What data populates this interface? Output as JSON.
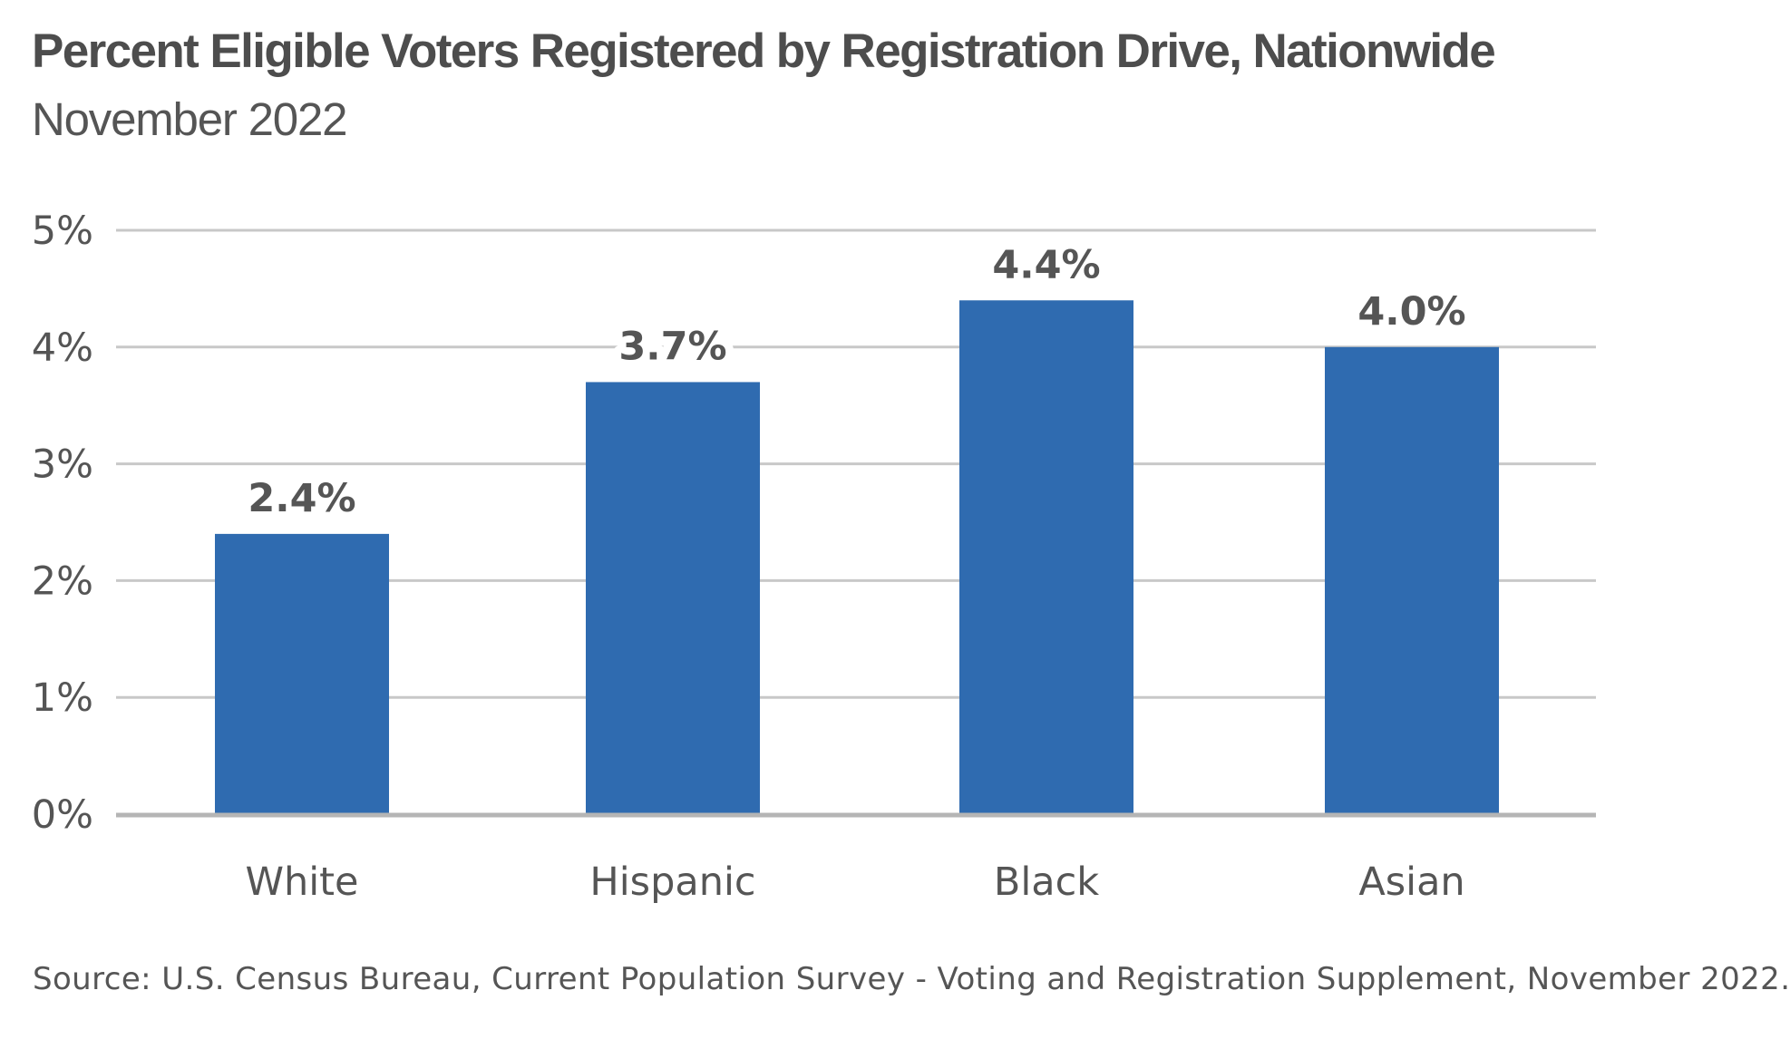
{
  "chart_data": {
    "type": "bar",
    "title": "Percent Eligible Voters Registered by Registration Drive, Nationwide",
    "subtitle": "November 2022",
    "categories": [
      "White",
      "Hispanic",
      "Black",
      "Asian"
    ],
    "values": [
      2.4,
      3.7,
      4.4,
      4.0
    ],
    "data_labels": [
      "2.4%",
      "3.7%",
      "4.4%",
      "4.0%"
    ],
    "xlabel": "",
    "ylabel": "",
    "ylim": [
      0,
      5
    ],
    "yticks": [
      0,
      1,
      2,
      3,
      4,
      5
    ],
    "ytick_labels": [
      "0%",
      "1%",
      "2%",
      "3%",
      "4%",
      "5%"
    ],
    "grid": true,
    "legend": "none",
    "bar_color": "#2f6bb0",
    "grid_color": "#c8c8c8",
    "source": "Source: U.S. Census Bureau, Current Population Survey - Voting and Registration Supplement, November 2022."
  }
}
